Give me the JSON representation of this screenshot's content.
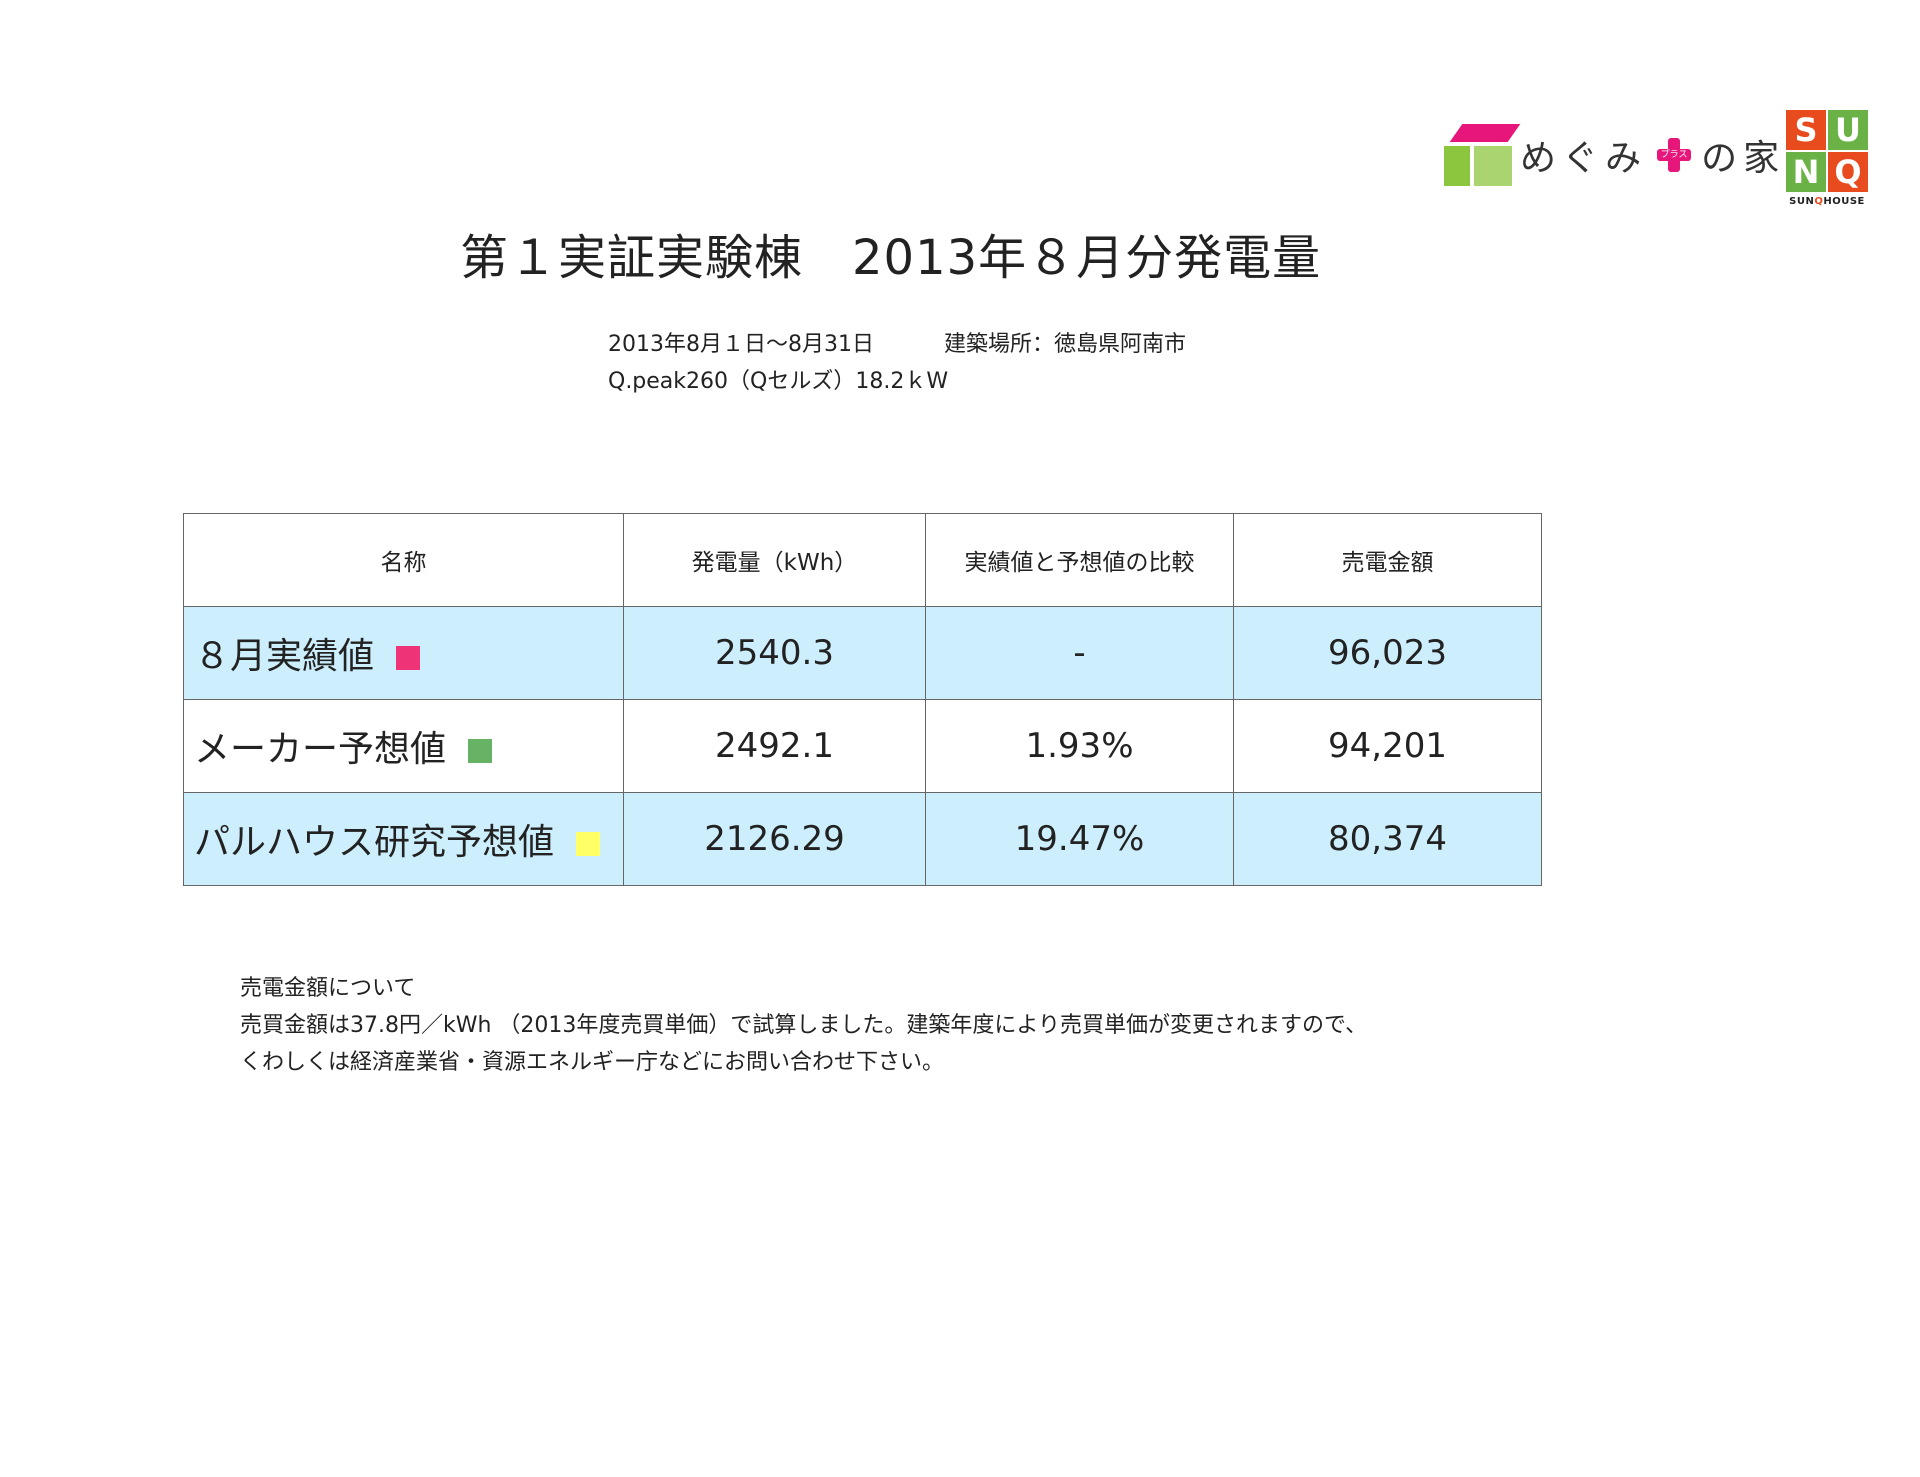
{
  "logos": {
    "megumi": {
      "before": "めぐみ",
      "plus_small": "プラス",
      "after": "の家"
    },
    "sunq": {
      "letters": [
        "S",
        "U",
        "N",
        "Q"
      ],
      "colors": [
        "#e84c1e",
        "#6ab245",
        "#6ab245",
        "#e84c1e"
      ],
      "caption_a": "SUN",
      "caption_q": "Q",
      "caption_b": "HOUSE"
    }
  },
  "title": "第１実証実験棟　2013年８月分発電量",
  "info": {
    "period": "2013年8月１日〜8月31日",
    "location": "建築場所：徳島県阿南市",
    "panel": "Q.peak260（Qセルズ）18.2ｋW"
  },
  "table": {
    "headers": [
      "名称",
      "発電量（kWh）",
      "実績値と予想値の比較",
      "売電金額"
    ],
    "rows": [
      {
        "name": "８月実績値",
        "swatch": "#ee3377",
        "generation": "2540.3",
        "comparison": "-",
        "amount": "96,023"
      },
      {
        "name": "メーカー予想値",
        "swatch": "#66b366",
        "generation": "2492.1",
        "comparison": "1.93%",
        "amount": "94,201"
      },
      {
        "name": "パルハウス研究予想値",
        "swatch": "#ffff66",
        "generation": "2126.29",
        "comparison": "19.47%",
        "amount": "80,374"
      }
    ]
  },
  "note": {
    "heading": "売電金額について",
    "line1": "売買金額は37.8円／kWh （2013年度売買単価）で試算しました。建築年度により売買単価が変更されますので、",
    "line2": "くわしくは経済産業省・資源エネルギー庁などにお問い合わせ下さい。"
  }
}
